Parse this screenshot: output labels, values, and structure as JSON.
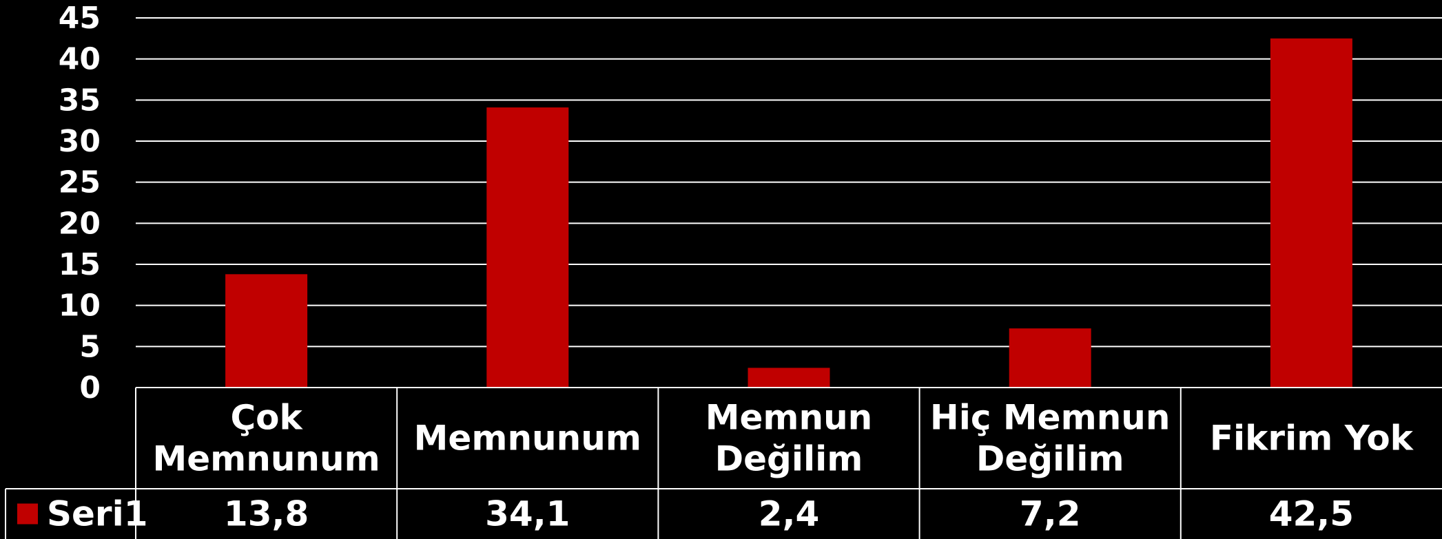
{
  "chart_data": {
    "type": "bar",
    "categories": [
      [
        "Çok",
        "Memnunum"
      ],
      [
        "Memnunum"
      ],
      [
        "Memnun",
        "Değilim"
      ],
      [
        "Hiç Memnun",
        "Değilim"
      ],
      [
        "Fikrim Yok"
      ]
    ],
    "series": [
      {
        "name": "Seri1",
        "values": [
          13.8,
          34.1,
          2.4,
          7.2,
          42.5
        ],
        "labels": [
          "13,8",
          "34,1",
          "2,4",
          "7,2",
          "42,5"
        ],
        "color": "#c00000"
      }
    ],
    "yticks": [
      "0",
      "5",
      "10",
      "15",
      "20",
      "25",
      "30",
      "35",
      "40",
      "45"
    ],
    "ylim": [
      0,
      45
    ],
    "grid": true,
    "legend": "data-table-left",
    "data_table": true
  },
  "colors": {
    "background": "#000000",
    "grid": "#ffffff",
    "text": "#ffffff",
    "bar": "#c00000"
  }
}
